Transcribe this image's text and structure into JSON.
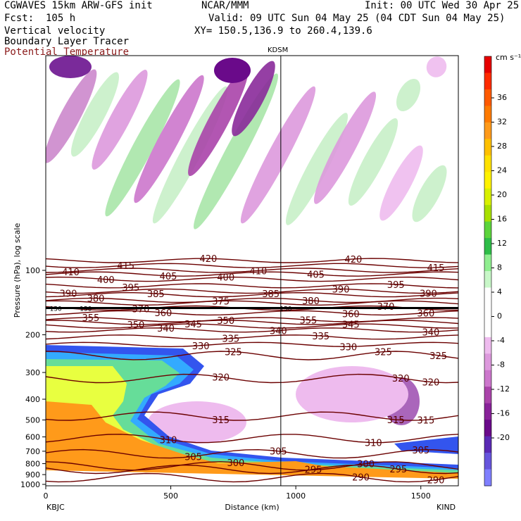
{
  "header": {
    "model": "CGWAVES 15km ARW-GFS init",
    "forecast": "Fcst:  105 h",
    "field1": "Vertical velocity",
    "field2": "Boundary Layer Tracer",
    "field3": "Potential Temperature",
    "org": "NCAR/MMM",
    "init": "Init: 00 UTC Wed 30 Apr 25",
    "valid": "Valid: 09 UTC Sun 04 May 25 (04 CDT Sun 04 May 25)",
    "xy": "XY= 150.5,136.9 to 260.4,139.6",
    "station_marker": "KDSM"
  },
  "colors": {
    "theta_contour": "#6b0000",
    "field3_text": "#8b1a1a"
  },
  "chart_data": {
    "type": "heatmap",
    "xlabel": "Distance (km)",
    "ylabel": "Pressure (hPa), log scale",
    "x_ticks": [
      0,
      500,
      1000,
      1500
    ],
    "xlim": [
      0,
      1650
    ],
    "y_ticks": [
      100,
      200,
      300,
      400,
      500,
      600,
      700,
      800,
      900,
      1000
    ],
    "y_scale": "log",
    "x_endpoints": {
      "left": "KBJC",
      "right": "KIND"
    },
    "marker_x_km": 940,
    "colorbar": {
      "unit": "cm s⁻¹",
      "levels": [
        36,
        32,
        28,
        24,
        20,
        16,
        12,
        8,
        4,
        0,
        -4,
        -8,
        -12,
        -16,
        -20
      ],
      "labels": [
        "36",
        "32",
        "28",
        "24",
        "20",
        "16",
        "12",
        "8",
        "4",
        "0",
        "-4",
        "-8",
        "-12",
        "-16",
        "-20"
      ],
      "colors": [
        "#e60000",
        "#ff2b00",
        "#ff5a00",
        "#ff7a00",
        "#ff9a1a",
        "#ffc000",
        "#ffe100",
        "#fff200",
        "#d8f000",
        "#a8e000",
        "#5cd43c",
        "#2ebd48",
        "#90ee90",
        "#c8f7c8",
        "#ffffff",
        "#ffffff",
        "#ffffff",
        "#eebbee",
        "#dd99dd",
        "#cc77cc",
        "#aa44aa",
        "#882299",
        "#6a0a8a",
        "#5a2ab5",
        "#6655dd",
        "#7f7fff"
      ]
    },
    "theta_contours": [
      {
        "value": 420,
        "label_x_km": [
          650,
          1230
        ],
        "p": 90
      },
      {
        "value": 415,
        "label_x_km": [
          320,
          1560
        ],
        "p": 95
      },
      {
        "value": 410,
        "label_x_km": [
          100,
          850
        ],
        "p": 100
      },
      {
        "value": 405,
        "label_x_km": [
          490,
          1080
        ],
        "p": 104
      },
      {
        "value": 400,
        "label_x_km": [
          240,
          720
        ],
        "p": 110
      },
      {
        "value": 395,
        "label_x_km": [
          340,
          1400
        ],
        "p": 118
      },
      {
        "value": 390,
        "label_x_km": [
          90,
          1180,
          1530
        ],
        "p": 125
      },
      {
        "value": 385,
        "label_x_km": [
          440,
          900
        ],
        "p": 130
      },
      {
        "value": 380,
        "label_x_km": [
          200,
          1060
        ],
        "p": 138
      },
      {
        "value": 375,
        "label_x_km": [
          700
        ],
        "p": 142
      },
      {
        "value": 370,
        "label_x_km": [
          380,
          1360
        ],
        "p": 150
      },
      {
        "value": 360,
        "label_x_km": [
          470,
          1220,
          1520
        ],
        "p": 158
      },
      {
        "value": 355,
        "label_x_km": [
          180,
          1050
        ],
        "p": 170
      },
      {
        "value": 350,
        "label_x_km": [
          360,
          720
        ],
        "p": 175
      },
      {
        "value": 345,
        "label_x_km": [
          590,
          1220
        ],
        "p": 182
      },
      {
        "value": 340,
        "label_x_km": [
          480,
          930,
          1540
        ],
        "p": 190
      },
      {
        "value": 335,
        "label_x_km": [
          740,
          1100
        ],
        "p": 205
      },
      {
        "value": 330,
        "label_x_km": [
          620,
          1210
        ],
        "p": 222
      },
      {
        "value": 325,
        "label_x_km": [
          750,
          1350,
          1570
        ],
        "p": 250
      },
      {
        "value": 320,
        "label_x_km": [
          700,
          1420,
          1540
        ],
        "p": 320
      },
      {
        "value": 315,
        "label_x_km": [
          700,
          1400,
          1520
        ],
        "p": 480
      },
      {
        "value": 310,
        "label_x_km": [
          490,
          1310
        ],
        "p": 610
      },
      {
        "value": 305,
        "label_x_km": [
          590,
          930,
          1500
        ],
        "p": 720
      },
      {
        "value": 300,
        "label_x_km": [
          760,
          1280
        ],
        "p": 820
      },
      {
        "value": 295,
        "label_x_km": [
          1070,
          1410
        ],
        "p": 850
      },
      {
        "value": 290,
        "label_x_km": [
          1260,
          1560
        ],
        "p": 930
      }
    ],
    "tropopause_labels": [
      "150",
      "150",
      "150"
    ]
  }
}
